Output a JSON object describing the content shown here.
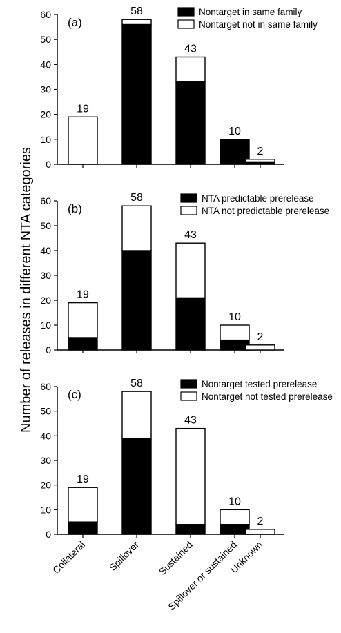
{
  "chart_data": [
    {
      "type": "bar",
      "panel": "(a)",
      "categories": [
        "Collateral",
        "Spillover",
        "Sustained",
        "Spillover or sustained",
        "Unknown"
      ],
      "series": [
        {
          "name": "Nontarget in same family",
          "color": "#000000",
          "values": [
            0,
            56,
            33,
            10,
            1
          ]
        },
        {
          "name": "Nontarget not in same family",
          "color": "#ffffff",
          "values": [
            19,
            2,
            10,
            0,
            1
          ]
        }
      ],
      "totals": [
        19,
        58,
        43,
        10,
        2
      ],
      "yticks": [
        0,
        10,
        20,
        30,
        40,
        50,
        60
      ],
      "ylim": [
        0,
        60
      ],
      "legend_position": "top-right",
      "grid": false
    },
    {
      "type": "bar",
      "panel": "(b)",
      "categories": [
        "Collateral",
        "Spillover",
        "Sustained",
        "Spillover or sustained",
        "Unknown"
      ],
      "series": [
        {
          "name": "NTA predictable prerelease",
          "color": "#000000",
          "values": [
            5,
            40,
            21,
            4,
            0
          ]
        },
        {
          "name": "NTA not predictable prerelease",
          "color": "#ffffff",
          "values": [
            14,
            18,
            22,
            6,
            2
          ]
        }
      ],
      "totals": [
        19,
        58,
        43,
        10,
        2
      ],
      "yticks": [
        0,
        10,
        20,
        30,
        40,
        50,
        60
      ],
      "ylim": [
        0,
        60
      ],
      "legend_position": "top-right",
      "grid": false
    },
    {
      "type": "bar",
      "panel": "(c)",
      "categories": [
        "Collateral",
        "Spillover",
        "Sustained",
        "Spillover or sustained",
        "Unknown"
      ],
      "series": [
        {
          "name": "Nontarget tested prerelease",
          "color": "#000000",
          "values": [
            5,
            39,
            4,
            4,
            0
          ]
        },
        {
          "name": "Nontarget not tested prerelease",
          "color": "#ffffff",
          "values": [
            14,
            19,
            39,
            6,
            2
          ]
        }
      ],
      "totals": [
        19,
        58,
        43,
        10,
        2
      ],
      "yticks": [
        0,
        10,
        20,
        30,
        40,
        50,
        60
      ],
      "ylim": [
        0,
        60
      ],
      "legend_position": "top-right",
      "grid": false
    }
  ],
  "ylabel": "Number of releases in different NTA categories"
}
